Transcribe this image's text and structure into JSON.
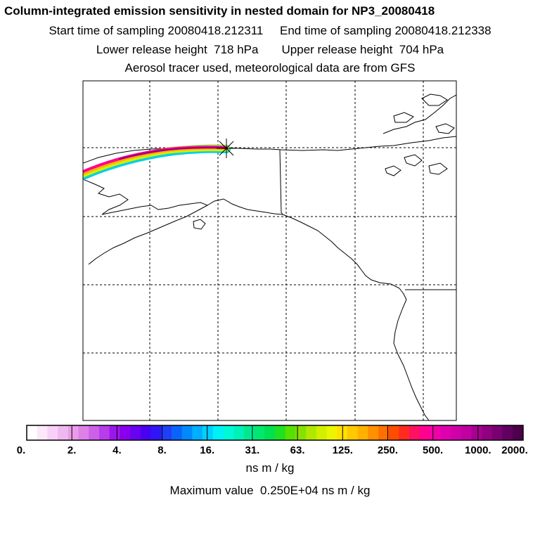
{
  "header": {
    "title": "Column-integrated emission sensitivity in nested domain for NP3_20080418",
    "line2": "Start time of sampling 20080418.212311     End time of sampling 20080418.212338",
    "line3": "Lower release height  718 hPa       Upper release height  704 hPa",
    "line4": "Aerosol tracer used, meteorological data are from GFS"
  },
  "colorbar": {
    "tick_labels": [
      "0.",
      "2.",
      "4.",
      "8.",
      "16.",
      "31.",
      "63.",
      "125.",
      "250.",
      "500.",
      "1000.",
      "2000."
    ],
    "unit": "ns m / kg",
    "colors": [
      "#ffffff",
      "#fbe8fb",
      "#f7d1f7",
      "#f0b8f0",
      "#e89de8",
      "#dd80e8",
      "#cc60e8",
      "#b83cea",
      "#9c16ec",
      "#8800ee",
      "#6c00f0",
      "#4a00f4",
      "#2f16f6",
      "#1f3ff8",
      "#0b63fa",
      "#0089fc",
      "#00aefe",
      "#00cffe",
      "#00f0f8",
      "#00f8d8",
      "#00f0b8",
      "#00e890",
      "#00e870",
      "#00e050",
      "#20e020",
      "#58e000",
      "#88e000",
      "#b0e800",
      "#d0f000",
      "#ecf400",
      "#ffe000",
      "#ffc800",
      "#ffb000",
      "#ff9000",
      "#ff7000",
      "#ff4c00",
      "#ff2a20",
      "#ff1060",
      "#ff0090",
      "#f000a8",
      "#e000b0",
      "#d000a8",
      "#c000a0",
      "#a80090",
      "#900080",
      "#780070",
      "#600060",
      "#4c004c"
    ]
  },
  "max_value_text": "Maximum value  0.250E+04 ns m / kg"
}
